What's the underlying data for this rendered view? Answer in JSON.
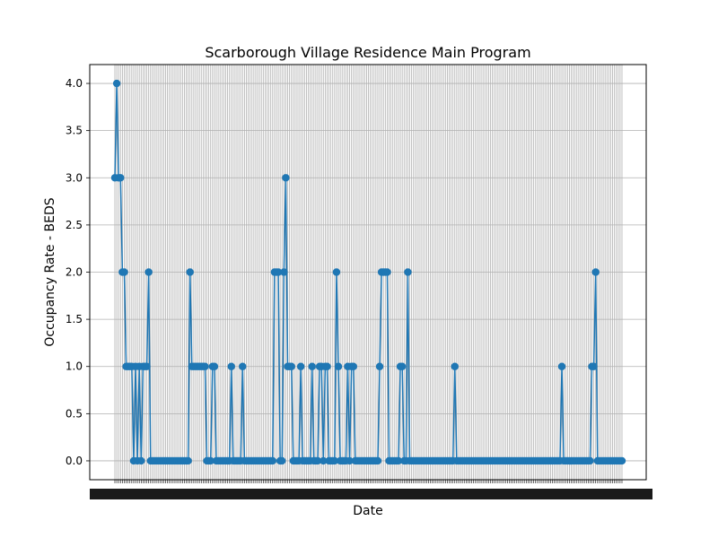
{
  "chart_data": {
    "type": "line",
    "title": "Scarborough Village Residence Main Program",
    "xlabel": "Date",
    "ylabel": "Occupancy Rate - BEDS",
    "ylim": [
      -0.2,
      4.2
    ],
    "yticks": [
      0.0,
      0.5,
      1.0,
      1.5,
      2.0,
      2.5,
      3.0,
      3.5,
      4.0
    ],
    "ytick_labels": [
      "0.0",
      "0.5",
      "1.0",
      "1.5",
      "2.0",
      "2.5",
      "3.0",
      "3.5",
      "4.0"
    ],
    "grid": true,
    "marker": "circle",
    "color": "#1f77b4",
    "series": [
      {
        "values": [
          3,
          4,
          3,
          3,
          2,
          2,
          1,
          1,
          1,
          1,
          0,
          1,
          0,
          1,
          0,
          1,
          1,
          1,
          2,
          0,
          0,
          0,
          0,
          0,
          0,
          0,
          0,
          0,
          0,
          0,
          0,
          0,
          0,
          0,
          0,
          0,
          0,
          0,
          0,
          0,
          2,
          1,
          1,
          1,
          1,
          1,
          1,
          1,
          1,
          0,
          0,
          0,
          1,
          1,
          0,
          0,
          0,
          0,
          0,
          0,
          0,
          0,
          1,
          0,
          0,
          0,
          0,
          0,
          1,
          0,
          0,
          0,
          0,
          0,
          0,
          0,
          0,
          0,
          0,
          0,
          0,
          0,
          0,
          0,
          0,
          2,
          2,
          2,
          0,
          0,
          2,
          3,
          1,
          1,
          1,
          0,
          0,
          0,
          0,
          1,
          0,
          0,
          0,
          0,
          0,
          1,
          0,
          0,
          0,
          1,
          1,
          0,
          1,
          1,
          0,
          0,
          0,
          0,
          2,
          1,
          0,
          0,
          0,
          0,
          1,
          0,
          1,
          1,
          0,
          0,
          0,
          0,
          0,
          0,
          0,
          0,
          0,
          0,
          0,
          0,
          0,
          1,
          2,
          2,
          2,
          2,
          0,
          0,
          0,
          0,
          0,
          0,
          1,
          1,
          0,
          0,
          2,
          0,
          0,
          0,
          0,
          0,
          0,
          0,
          0,
          0,
          0,
          0,
          0,
          0,
          0,
          0,
          0,
          0,
          0,
          0,
          0,
          0,
          0,
          0,
          0,
          1,
          0,
          0,
          0,
          0,
          0,
          0,
          0,
          0,
          0,
          0,
          0,
          0,
          0,
          0,
          0,
          0,
          0,
          0,
          0,
          0,
          0,
          0,
          0,
          0,
          0,
          0,
          0,
          0,
          0,
          0,
          0,
          0,
          0,
          0,
          0,
          0,
          0,
          0,
          0,
          0,
          0,
          0,
          0,
          0,
          0,
          0,
          0,
          0,
          0,
          0,
          0,
          0,
          0,
          0,
          0,
          0,
          1,
          0,
          0,
          0,
          0,
          0,
          0,
          0,
          0,
          0,
          0,
          0,
          0,
          0,
          0,
          0,
          1,
          1,
          2,
          0,
          0,
          0,
          0,
          0,
          0,
          0,
          0,
          0,
          0,
          0,
          0,
          0,
          0
        ]
      }
    ]
  }
}
